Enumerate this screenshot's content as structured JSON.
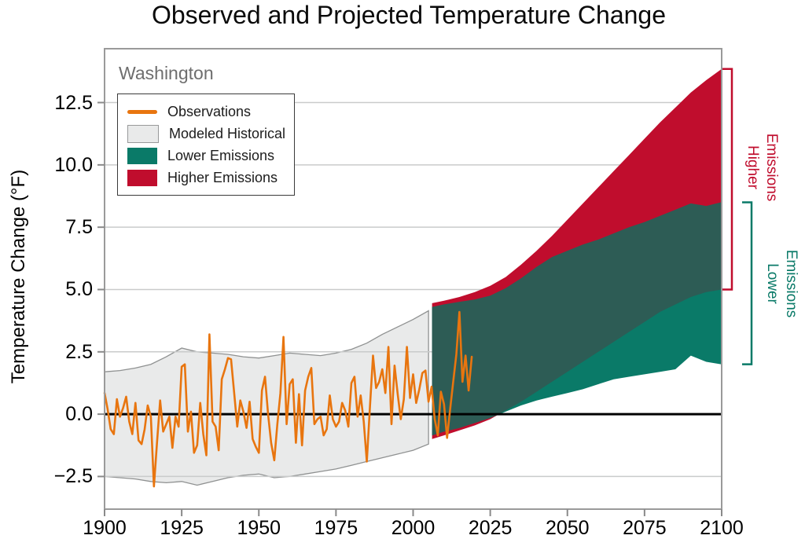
{
  "title": "Observed and Projected Temperature Change",
  "region_label": "Washington",
  "y_axis": {
    "label": "Temperature Change (°F)",
    "tick_labels": [
      "12.5",
      "10.0",
      "7.5",
      "5.0",
      "2.5",
      "0.0",
      "−2.5"
    ],
    "tick_values": [
      12.5,
      10.0,
      7.5,
      5.0,
      2.5,
      0.0,
      -2.5
    ]
  },
  "x_axis": {
    "tick_labels": [
      "1900",
      "1925",
      "1950",
      "1975",
      "2000",
      "2025",
      "2050",
      "2075",
      "2100"
    ],
    "tick_values": [
      1900,
      1925,
      1950,
      1975,
      2000,
      2025,
      2050,
      2075,
      2100
    ]
  },
  "legend": {
    "items": [
      {
        "label": "Observations",
        "type": "line",
        "color": "#e8750f"
      },
      {
        "label": "Modeled Historical",
        "type": "box",
        "color": "#e9eaea",
        "border": "#98999a"
      },
      {
        "label": "Lower Emissions",
        "type": "box",
        "color": "#0a7a68"
      },
      {
        "label": "Higher Emissions",
        "type": "box",
        "color": "#c00d2d"
      }
    ]
  },
  "annotations": {
    "higher": {
      "label": "Higher Emissions",
      "color": "#c00d2d",
      "range_at_2100": [
        5.0,
        13.85
      ]
    },
    "lower": {
      "label": "Lower Emissions",
      "color": "#0a7a68",
      "range_at_2100": [
        2.0,
        8.5
      ]
    }
  },
  "colors": {
    "observations": "#e8750f",
    "modeled_historical_fill": "#e9eaea",
    "modeled_historical_edge": "#8f9191",
    "lower_emissions": "#0a7a68",
    "higher_emissions": "#c00d2d",
    "overlap": "#2d5c55",
    "zero_line": "#000000",
    "grid": "#c9cbcb",
    "frame": "#9a9a9a",
    "tick": "#8a8a8a"
  },
  "chart_data": {
    "type": "area",
    "title": "Observed and Projected Temperature Change",
    "subtitle": "Washington",
    "xlabel": "",
    "ylabel": "Temperature Change (°F)",
    "xlim": [
      1900,
      2100
    ],
    "ylim": [
      -3.81,
      14.66
    ],
    "grid": "horizontal",
    "legend_position": "upper-left",
    "series": [
      {
        "name": "Observations",
        "type": "line",
        "color": "#e8750f",
        "start_year": 1900,
        "end_year": 2019,
        "values": [
          0.85,
          0.2,
          -0.6,
          -0.8,
          0.6,
          -0.1,
          0.25,
          0.7,
          -0.3,
          -0.8,
          0.45,
          -1.05,
          -1.2,
          -0.6,
          0.35,
          -0.1,
          -2.9,
          -1.15,
          0.55,
          -0.7,
          -0.4,
          -0.1,
          -1.35,
          -0.1,
          -0.5,
          1.9,
          2.0,
          -0.7,
          0.1,
          -1.55,
          -1.25,
          0.45,
          -0.8,
          -1.65,
          3.2,
          -0.3,
          -0.5,
          -1.45,
          1.4,
          1.8,
          2.25,
          2.2,
          0.85,
          -0.5,
          0.55,
          0.1,
          -0.55,
          0.5,
          -1.0,
          -1.3,
          -1.55,
          0.95,
          1.5,
          0.0,
          -1.15,
          -1.85,
          -0.4,
          0.85,
          3.1,
          -0.4,
          1.2,
          1.4,
          -1.15,
          0.8,
          -1.25,
          0.95,
          1.5,
          1.85,
          -0.4,
          -0.2,
          -0.1,
          -0.85,
          -0.6,
          0.75,
          -0.2,
          -0.5,
          -0.3,
          0.45,
          0.15,
          -0.5,
          1.25,
          1.5,
          -0.1,
          0.75,
          -0.3,
          -1.9,
          0.3,
          2.35,
          1.05,
          1.3,
          1.8,
          0.85,
          2.7,
          -0.4,
          1.95,
          0.8,
          -0.2,
          0.6,
          2.7,
          0.65,
          1.6,
          0.45,
          1.0,
          1.65,
          1.75,
          0.5,
          1.1,
          -0.2,
          -0.85,
          0.9,
          0.4,
          -0.95,
          0.2,
          1.3,
          2.4,
          4.1,
          1.3,
          2.35,
          0.95,
          2.3
        ]
      },
      {
        "name": "Modeled Historical",
        "type": "band",
        "fill": "#e9eaea",
        "edge": "#8f9191",
        "years": [
          1900,
          1905,
          1910,
          1915,
          1920,
          1925,
          1930,
          1935,
          1940,
          1945,
          1950,
          1955,
          1960,
          1965,
          1970,
          1975,
          1980,
          1985,
          1990,
          1995,
          2000,
          2005
        ],
        "upper": [
          1.7,
          1.75,
          1.85,
          2.0,
          2.3,
          2.65,
          2.5,
          2.45,
          2.4,
          2.3,
          2.25,
          2.35,
          2.45,
          2.4,
          2.35,
          2.45,
          2.6,
          2.85,
          3.2,
          3.5,
          3.8,
          4.15
        ],
        "lower": [
          -2.5,
          -2.55,
          -2.6,
          -2.7,
          -2.75,
          -2.7,
          -2.85,
          -2.7,
          -2.55,
          -2.45,
          -2.4,
          -2.55,
          -2.5,
          -2.4,
          -2.3,
          -2.2,
          -2.05,
          -1.9,
          -1.75,
          -1.6,
          -1.45,
          -1.2
        ]
      },
      {
        "name": "Lower Emissions",
        "type": "band",
        "fill": "#0a7a68",
        "years": [
          2005,
          2010,
          2015,
          2020,
          2025,
          2030,
          2035,
          2040,
          2045,
          2050,
          2055,
          2060,
          2065,
          2070,
          2075,
          2080,
          2085,
          2090,
          2095,
          2100
        ],
        "upper": [
          4.3,
          4.4,
          4.5,
          4.6,
          4.75,
          5.05,
          5.45,
          5.9,
          6.3,
          6.55,
          6.8,
          7.0,
          7.25,
          7.5,
          7.7,
          7.95,
          8.2,
          8.45,
          8.35,
          8.5
        ],
        "lower": [
          -0.85,
          -0.7,
          -0.55,
          -0.35,
          -0.15,
          0.1,
          0.35,
          0.55,
          0.7,
          0.85,
          1.0,
          1.2,
          1.4,
          1.5,
          1.6,
          1.7,
          1.8,
          2.35,
          2.1,
          2.0
        ]
      },
      {
        "name": "Higher Emissions",
        "type": "band",
        "fill": "#c00d2d",
        "years": [
          2005,
          2010,
          2015,
          2020,
          2025,
          2030,
          2035,
          2040,
          2045,
          2050,
          2055,
          2060,
          2065,
          2070,
          2075,
          2080,
          2085,
          2090,
          2095,
          2100
        ],
        "upper": [
          4.45,
          4.55,
          4.7,
          4.9,
          5.15,
          5.5,
          6.0,
          6.55,
          7.15,
          7.8,
          8.45,
          9.1,
          9.75,
          10.4,
          11.05,
          11.7,
          12.3,
          12.9,
          13.4,
          13.85
        ],
        "lower": [
          -1.0,
          -0.85,
          -0.65,
          -0.45,
          -0.2,
          0.15,
          0.5,
          0.9,
          1.3,
          1.7,
          2.1,
          2.5,
          2.9,
          3.3,
          3.7,
          4.1,
          4.4,
          4.7,
          4.9,
          5.0
        ]
      }
    ],
    "zero_reference_line": 0.0
  }
}
